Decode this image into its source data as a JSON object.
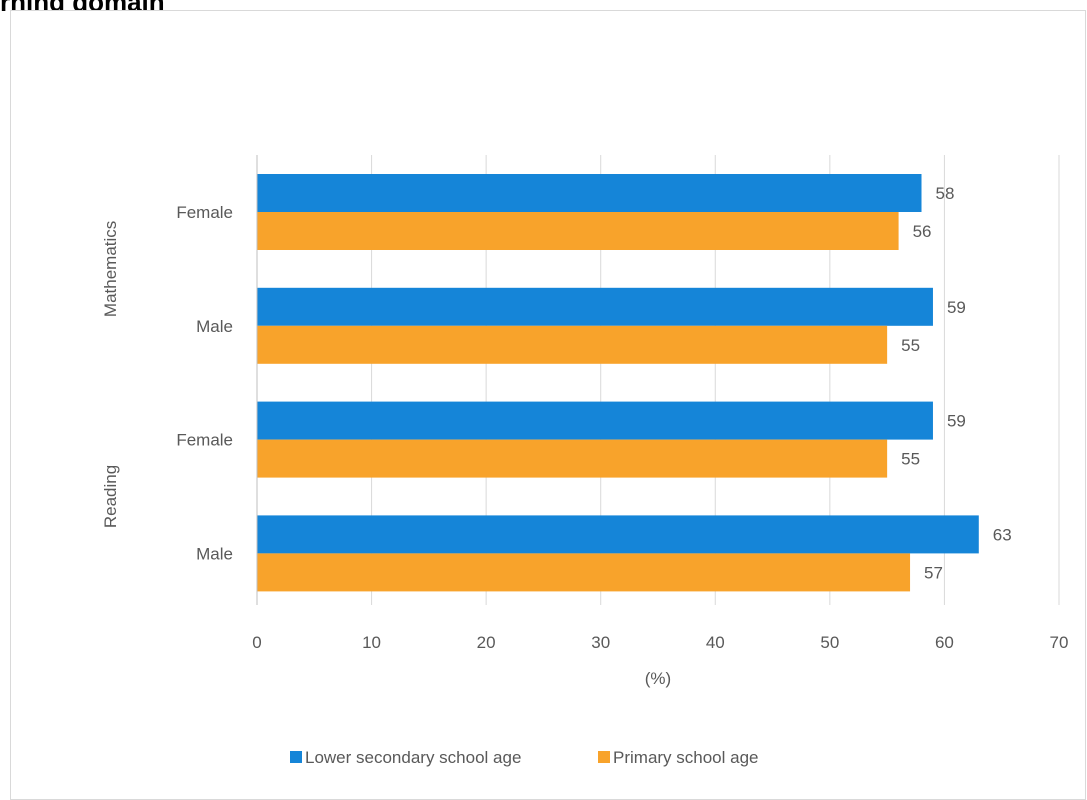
{
  "page": {
    "heading": "rning domain"
  },
  "chart_data": {
    "type": "bar",
    "orientation": "horizontal",
    "groups": [
      "Mathematics",
      "Reading"
    ],
    "categories": [
      {
        "group": "Mathematics",
        "label": "Female"
      },
      {
        "group": "Mathematics",
        "label": "Male"
      },
      {
        "group": "Reading",
        "label": "Female"
      },
      {
        "group": "Reading",
        "label": "Male"
      }
    ],
    "series": [
      {
        "name": "Lower secondary school age",
        "color": "#1585d8",
        "values": [
          58,
          59,
          59,
          63
        ]
      },
      {
        "name": "Primary school age",
        "color": "#f8a32b",
        "values": [
          56,
          55,
          55,
          57
        ]
      }
    ],
    "xlabel": "(%)",
    "xlim": [
      0,
      70
    ],
    "xticks": [
      0,
      10,
      20,
      30,
      40,
      50,
      60,
      70
    ],
    "grid": true,
    "legend_position": "bottom"
  }
}
